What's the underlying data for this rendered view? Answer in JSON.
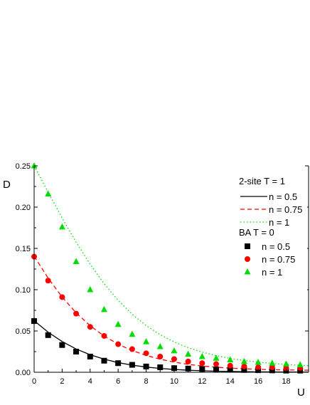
{
  "chart_data": {
    "type": "scatter",
    "xlabel": "U",
    "ylabel": "D",
    "xlim": [
      0,
      19.6
    ],
    "ylim": [
      0,
      0.25
    ],
    "xticks": [
      0,
      2,
      4,
      6,
      8,
      10,
      12,
      14,
      16,
      18
    ],
    "yticks": [
      0.0,
      0.05,
      0.1,
      0.15,
      0.2,
      0.25
    ],
    "ytick_labels": [
      "0.00",
      "0.05",
      "0.10",
      "0.15",
      "0.20",
      "0.25"
    ],
    "legend": {
      "position": "right",
      "group1_title": "2-site T = 1",
      "group2_title": "BA T = 0"
    },
    "series": [
      {
        "name": "n = 0.5",
        "group": "2-site T = 1",
        "kind": "line",
        "style": "solid",
        "color": "#000000",
        "x": [
          0,
          1,
          2,
          3,
          4,
          5,
          6,
          7,
          8,
          9,
          10,
          11,
          12,
          13,
          14,
          15,
          16,
          17,
          18,
          19,
          19.6
        ],
        "y": [
          0.0625,
          0.0485,
          0.0372,
          0.0282,
          0.0212,
          0.0158,
          0.0117,
          0.0086,
          0.0063,
          0.0046,
          0.0034,
          0.0025,
          0.0018,
          0.0013,
          0.001,
          0.0007,
          0.0005,
          0.0004,
          0.0003,
          0.0002,
          0.0002
        ]
      },
      {
        "name": "n = 0.75",
        "group": "2-site T = 1",
        "kind": "line",
        "style": "dashed",
        "color": "#ff0000",
        "x": [
          0,
          1,
          2,
          3,
          4,
          5,
          6,
          7,
          8,
          9,
          10,
          11,
          12,
          13,
          14,
          15,
          16,
          17,
          18,
          19,
          19.6
        ],
        "y": [
          0.1406,
          0.114,
          0.0911,
          0.072,
          0.0564,
          0.0439,
          0.034,
          0.0263,
          0.0204,
          0.0158,
          0.0123,
          0.0096,
          0.0076,
          0.0061,
          0.005,
          0.0042,
          0.0036,
          0.0031,
          0.0028,
          0.0026,
          0.0025
        ]
      },
      {
        "name": "n = 1",
        "group": "2-site T = 1",
        "kind": "line",
        "style": "dotted",
        "color": "#00dd00",
        "x": [
          0,
          1,
          2,
          3,
          4,
          5,
          6,
          7,
          8,
          9,
          10,
          11,
          12,
          13,
          14,
          15,
          16,
          17,
          18,
          19,
          19.6
        ],
        "y": [
          0.25,
          0.2181,
          0.1869,
          0.1575,
          0.1308,
          0.1073,
          0.0871,
          0.0703,
          0.0565,
          0.0455,
          0.0367,
          0.0298,
          0.0244,
          0.0201,
          0.0168,
          0.0142,
          0.0122,
          0.0106,
          0.0094,
          0.0085,
          0.008
        ]
      },
      {
        "name": "n = 0.5",
        "group": "BA T = 0",
        "kind": "marker",
        "marker": "square",
        "color": "#000000",
        "x": [
          0,
          1,
          2,
          3,
          4,
          5,
          6,
          7,
          8,
          9,
          10,
          11,
          12,
          13,
          14,
          15,
          16,
          17,
          18,
          19
        ],
        "y": [
          0.062,
          0.045,
          0.033,
          0.025,
          0.019,
          0.014,
          0.011,
          0.009,
          0.007,
          0.006,
          0.005,
          0.0045,
          0.004,
          0.0035,
          0.003,
          0.0028,
          0.0025,
          0.0023,
          0.002,
          0.002
        ]
      },
      {
        "name": "n = 0.75",
        "group": "BA T = 0",
        "kind": "marker",
        "marker": "circle",
        "color": "#ff0000",
        "x": [
          0,
          1,
          2,
          3,
          4,
          5,
          6,
          7,
          8,
          9,
          10,
          11,
          12,
          13,
          14,
          15,
          16,
          17,
          18,
          19
        ],
        "y": [
          0.14,
          0.111,
          0.091,
          0.071,
          0.055,
          0.044,
          0.034,
          0.028,
          0.023,
          0.019,
          0.016,
          0.013,
          0.011,
          0.01,
          0.008,
          0.007,
          0.006,
          0.006,
          0.005,
          0.005
        ]
      },
      {
        "name": "n = 1",
        "group": "BA T = 0",
        "kind": "marker",
        "marker": "triangle",
        "color": "#00dd00",
        "x": [
          0,
          1,
          2,
          3,
          4,
          5,
          6,
          7,
          8,
          9,
          10,
          11,
          12,
          13,
          14,
          15,
          16,
          17,
          18,
          19
        ],
        "y": [
          0.25,
          0.216,
          0.176,
          0.134,
          0.1,
          0.076,
          0.058,
          0.046,
          0.037,
          0.031,
          0.026,
          0.022,
          0.019,
          0.017,
          0.015,
          0.013,
          0.012,
          0.011,
          0.01,
          0.009
        ]
      }
    ]
  }
}
